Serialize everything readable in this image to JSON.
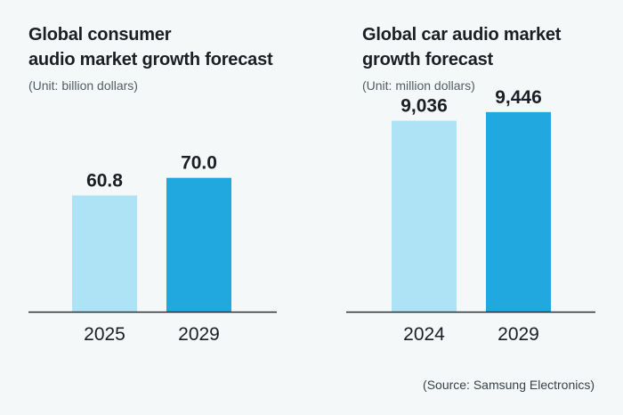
{
  "colors": {
    "bar_light": "#ade3f5",
    "bar_dark": "#21a8de",
    "axis": "#2b2f33",
    "text": "#1b1f24"
  },
  "chart_data": [
    {
      "type": "bar",
      "title": "Global consumer\naudio market growth forecast",
      "unit": "(Unit: billion dollars)",
      "categories": [
        "2025",
        "2029"
      ],
      "values": [
        60.8,
        70.0
      ],
      "value_labels": [
        "60.8",
        "70.0"
      ],
      "xlabel": "",
      "ylabel": "",
      "ylim": [
        0,
        163
      ],
      "grid": false
    },
    {
      "type": "bar",
      "title": "Global car audio market\ngrowth forecast",
      "unit": "(Unit: million dollars)",
      "categories": [
        "2024",
        "2029"
      ],
      "values": [
        9036,
        9446
      ],
      "value_labels": [
        "9,036",
        "9,446"
      ],
      "xlabel": "",
      "ylabel": "",
      "ylim": [
        0,
        14750
      ],
      "grid": false
    }
  ],
  "source": "(Source: Samsung Electronics)"
}
